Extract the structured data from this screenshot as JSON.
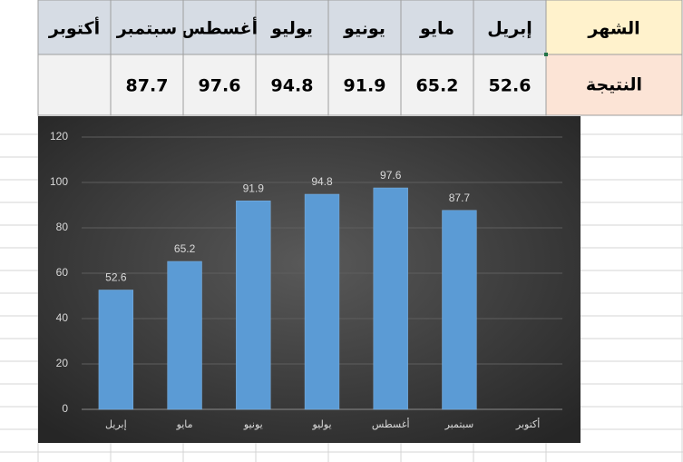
{
  "table": {
    "row_headers": [
      "الشهر",
      "النتيجة"
    ]
  },
  "chart_data": {
    "type": "bar",
    "categories": [
      "إبريل",
      "مايو",
      "يونيو",
      "يوليو",
      "أغسطس",
      "سبتمبر",
      "أكتوبر"
    ],
    "values": [
      52.6,
      65.2,
      91.9,
      94.8,
      97.6,
      87.7,
      null
    ],
    "color": "#5b9bd5",
    "ylim": [
      0,
      120
    ],
    "yticks": [
      0,
      20,
      40,
      60,
      80,
      100,
      120
    ],
    "grid": true
  }
}
